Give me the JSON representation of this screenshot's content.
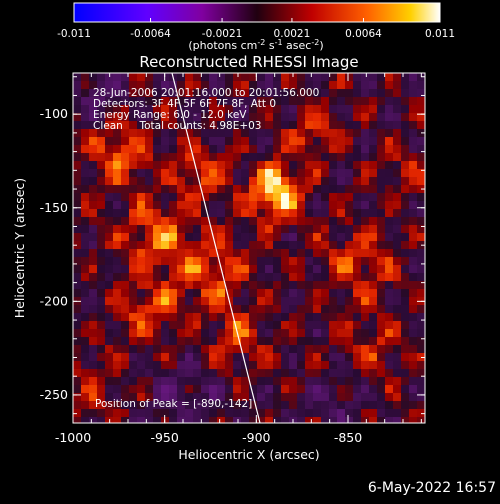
{
  "chart_data": {
    "type": "heatmap",
    "title": "Reconstructed RHESSI Image",
    "xlabel": "Heliocentric X (arcsec)",
    "ylabel": "Heliocentric Y (arcsec)",
    "xlim": [
      -1000,
      -808
    ],
    "ylim": [
      -265,
      -78
    ],
    "x_ticks": [
      "-1000",
      "-950",
      "-900",
      "-850"
    ],
    "x_tick_values": [
      -1000,
      -950,
      -900,
      -850
    ],
    "y_ticks": [
      "-100",
      "-150",
      "-200",
      "-250"
    ],
    "y_tick_values": [
      -100,
      -150,
      -200,
      -250
    ],
    "colorbar": {
      "range": [
        -0.011,
        0.011
      ],
      "ticks": [
        "-0.011",
        "-0.0064",
        "-0.0021",
        "0.0021",
        "0.0064",
        "0.011"
      ],
      "tick_values": [
        -0.011,
        -0.0064,
        -0.0021,
        0.0021,
        0.0064,
        0.011
      ],
      "label_main": "(photons cm",
      "label_exp1": "-2",
      "label_mid1": " s",
      "label_exp2": "-1",
      "label_mid2": " asec",
      "label_exp3": "-2",
      "label_end": ")"
    },
    "annotations": [
      "28-Jun-2006 20:01:16.000 to 20:01:56.000",
      "Detectors: 3F 4F 5F 6F 7F 8F, Att 0",
      "Energy Range: 6.0 - 12.0 keV",
      "Clean     Total counts: 4.98E+03"
    ],
    "peak_label": "Position of Peak = [-890,-142]",
    "peak": {
      "x": -890,
      "y": -142,
      "value": 0.011
    },
    "limb_line": [
      [
        -946,
        -78
      ],
      [
        -898,
        -265
      ]
    ],
    "sources": [
      {
        "x": -890,
        "y": -142,
        "amp": 1.0,
        "s": 10
      },
      {
        "x": -975,
        "y": -120,
        "amp": 0.6,
        "s": 12
      },
      {
        "x": -955,
        "y": -165,
        "amp": 0.55,
        "s": 14
      },
      {
        "x": -930,
        "y": -130,
        "amp": 0.55,
        "s": 10
      },
      {
        "x": -925,
        "y": -185,
        "amp": 0.5,
        "s": 14
      },
      {
        "x": -960,
        "y": -205,
        "amp": 0.45,
        "s": 12
      },
      {
        "x": -910,
        "y": -220,
        "amp": 0.4,
        "s": 12
      },
      {
        "x": -845,
        "y": -180,
        "amp": 0.45,
        "s": 14
      },
      {
        "x": -835,
        "y": -225,
        "amp": 0.35,
        "s": 12
      },
      {
        "x": -870,
        "y": -110,
        "amp": 0.4,
        "s": 10
      },
      {
        "x": -990,
        "y": -245,
        "amp": 0.3,
        "s": 12
      },
      {
        "x": -940,
        "y": -250,
        "amp": -0.3,
        "s": 14
      },
      {
        "x": -985,
        "y": -90,
        "amp": -0.35,
        "s": 10
      },
      {
        "x": -860,
        "y": -255,
        "amp": -0.25,
        "s": 12
      },
      {
        "x": -820,
        "y": -130,
        "amp": 0.25,
        "s": 10
      }
    ]
  },
  "footer": {
    "date": "6-May-2022 16:57"
  },
  "colors": {
    "background": "#000000",
    "text": "#ffffff",
    "limb": "#ffffff"
  }
}
